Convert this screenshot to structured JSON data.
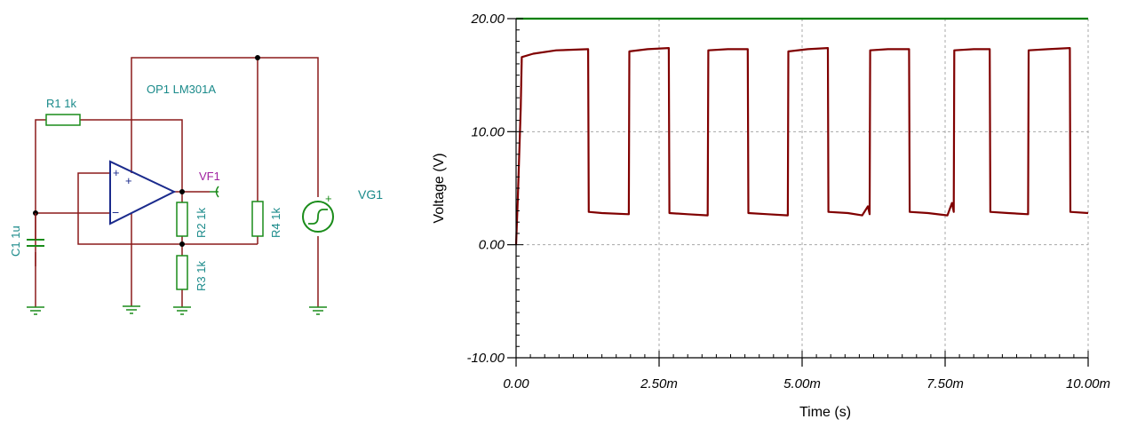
{
  "schematic": {
    "op_label": "OP1 LM301A",
    "r1_label": "R1 1k",
    "r2_label": "R2 1k",
    "r3_label": "R3 1k",
    "r4_label": "R4 1k",
    "c1_label": "C1 1u",
    "vf1_label": "VF1",
    "vg1_label": "VG1",
    "plus_sign": "+",
    "minus_sign": "−",
    "colors": {
      "wire": "#8b1a1a",
      "component": "#1a8c1a",
      "opamp": "#1a2a8c",
      "label": "#1a8a8a",
      "probe_label": "#a020a0"
    }
  },
  "chart_data": {
    "type": "line",
    "xlabel": "Time (s)",
    "ylabel": "Voltage (V)",
    "xlim": [
      0,
      0.01
    ],
    "ylim": [
      -10,
      20
    ],
    "x_ticks": [
      0,
      0.0025,
      0.005,
      0.0075,
      0.01
    ],
    "x_tick_labels": [
      "0.00",
      "2.50m",
      "5.00m",
      "7.50m",
      "10.00m"
    ],
    "y_ticks": [
      -10,
      0,
      10,
      20
    ],
    "y_tick_labels": [
      "-10.00",
      "0.00",
      "10.00",
      "20.00"
    ],
    "grid": true,
    "series": [
      {
        "color": "#008000",
        "points": [
          [
            0,
            20
          ],
          [
            0.01,
            20
          ]
        ]
      },
      {
        "color": "#800000",
        "points": [
          [
            0,
            0
          ],
          [
            3e-05,
            4
          ],
          [
            8e-05,
            12
          ],
          [
            0.0001,
            16.6
          ],
          [
            0.0003,
            16.9
          ],
          [
            0.0007,
            17.2
          ],
          [
            0.00126,
            17.3
          ],
          [
            0.00127,
            2.9
          ],
          [
            0.0015,
            2.8
          ],
          [
            0.00197,
            2.7
          ],
          [
            0.00198,
            17.1
          ],
          [
            0.0023,
            17.3
          ],
          [
            0.00267,
            17.4
          ],
          [
            0.00268,
            2.8
          ],
          [
            0.003,
            2.7
          ],
          [
            0.00335,
            2.6
          ],
          [
            0.00336,
            17.2
          ],
          [
            0.0037,
            17.3
          ],
          [
            0.00405,
            17.3
          ],
          [
            0.00406,
            2.8
          ],
          [
            0.0044,
            2.7
          ],
          [
            0.00475,
            2.6
          ],
          [
            0.00476,
            17.1
          ],
          [
            0.0051,
            17.3
          ],
          [
            0.00545,
            17.4
          ],
          [
            0.00546,
            2.9
          ],
          [
            0.0058,
            2.8
          ],
          [
            0.00605,
            2.6
          ],
          [
            0.00615,
            3.4
          ],
          [
            0.00618,
            2.7
          ],
          [
            0.00619,
            17.2
          ],
          [
            0.0065,
            17.3
          ],
          [
            0.00687,
            17.3
          ],
          [
            0.00688,
            2.9
          ],
          [
            0.0072,
            2.8
          ],
          [
            0.00754,
            2.6
          ],
          [
            0.00762,
            3.7
          ],
          [
            0.00765,
            2.9
          ],
          [
            0.00766,
            17.2
          ],
          [
            0.008,
            17.3
          ],
          [
            0.00828,
            17.3
          ],
          [
            0.00829,
            2.9
          ],
          [
            0.0086,
            2.8
          ],
          [
            0.00895,
            2.7
          ],
          [
            0.00896,
            17.2
          ],
          [
            0.0093,
            17.3
          ],
          [
            0.00968,
            17.4
          ],
          [
            0.00969,
            2.9
          ],
          [
            0.01,
            2.8
          ]
        ]
      }
    ]
  }
}
